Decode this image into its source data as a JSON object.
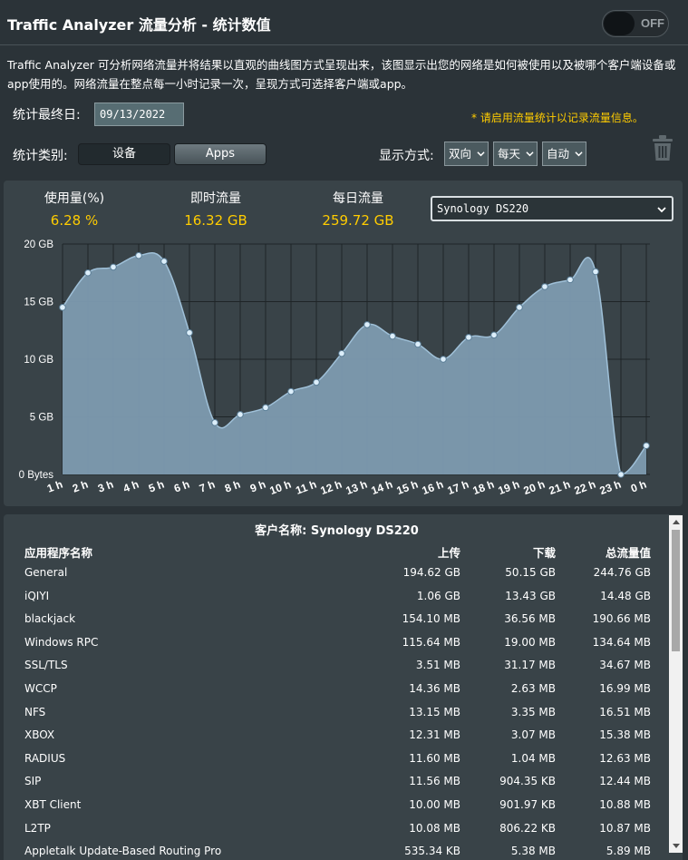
{
  "header": {
    "title": "Traffic Analyzer 流量分析 - 统计数值",
    "toggle_label": "OFF"
  },
  "description": "Traffic Analyzer 可分析网络流量并将结果以直观的曲线图方式呈现出来，该图显示出您的网络是如何被使用以及被哪个客户端设备或app使用的。网络流量在整点每一小时记录一次，呈现方式可选择客户端或app。",
  "controls": {
    "end_date_label": "统计最终日:",
    "end_date_value": "09/13/2022",
    "hint": "* 请启用流量统计以记录流量信息。",
    "category_label": "统计类别:",
    "category_device": "设备",
    "category_apps": "Apps",
    "display_label": "显示方式:",
    "direction": "双向",
    "period": "每天",
    "scale": "自动"
  },
  "stats": {
    "usage_label": "使用量(%)",
    "usage_value": "6.28 %",
    "realtime_label": "即时流量",
    "realtime_value": "16.32 GB",
    "daily_label": "每日流量",
    "daily_value": "259.72 GB",
    "client_selected": "Synology DS220"
  },
  "chart_data": {
    "type": "area",
    "x": [
      "1 h",
      "2 h",
      "3 h",
      "4 h",
      "5 h",
      "6 h",
      "7 h",
      "8 h",
      "9 h",
      "10 h",
      "11 h",
      "12 h",
      "13 h",
      "14 h",
      "15 h",
      "16 h",
      "17 h",
      "18 h",
      "19 h",
      "20 h",
      "21 h",
      "22 h",
      "23 h",
      "0 h"
    ],
    "values": [
      14.5,
      17.5,
      18.0,
      19.0,
      18.5,
      12.3,
      4.5,
      5.2,
      5.8,
      7.2,
      8.0,
      10.5,
      13.0,
      12.0,
      11.3,
      10.0,
      11.9,
      12.1,
      14.5,
      16.3,
      16.9,
      17.6,
      0.0,
      2.5
    ],
    "yticks": [
      "0 Bytes",
      "5 GB",
      "10 GB",
      "15 GB",
      "20 GB"
    ],
    "ylim": [
      0,
      20
    ],
    "unit": "GB",
    "grid": true,
    "fill_color": "#7d9bb0",
    "line_color": "#9fc0d8",
    "marker_color": "#dceefa"
  },
  "table": {
    "caption": "客户名称: Synology DS220",
    "headers": [
      "应用程序名称",
      "上传",
      "下载",
      "总流量值"
    ],
    "rows": [
      [
        "General",
        "194.62 GB",
        "50.15 GB",
        "244.76 GB"
      ],
      [
        "iQIYI",
        "1.06 GB",
        "13.43 GB",
        "14.48 GB"
      ],
      [
        "blackjack",
        "154.10 MB",
        "36.56 MB",
        "190.66 MB"
      ],
      [
        "Windows RPC",
        "115.64 MB",
        "19.00 MB",
        "134.64 MB"
      ],
      [
        "SSL/TLS",
        "3.51 MB",
        "31.17 MB",
        "34.67 MB"
      ],
      [
        "WCCP",
        "14.36 MB",
        "2.63 MB",
        "16.99 MB"
      ],
      [
        "NFS",
        "13.15 MB",
        "3.35 MB",
        "16.51 MB"
      ],
      [
        "XBOX",
        "12.31 MB",
        "3.07 MB",
        "15.38 MB"
      ],
      [
        "RADIUS",
        "11.60 MB",
        "1.04 MB",
        "12.63 MB"
      ],
      [
        "SIP",
        "11.56 MB",
        "904.35 KB",
        "12.44 MB"
      ],
      [
        "XBT Client",
        "10.00 MB",
        "901.97 KB",
        "10.88 MB"
      ],
      [
        "L2TP",
        "10.08 MB",
        "806.22 KB",
        "10.87 MB"
      ],
      [
        "Appletalk Update-Based Routing Pro",
        "535.34 KB",
        "5.38 MB",
        "5.89 MB"
      ]
    ]
  }
}
